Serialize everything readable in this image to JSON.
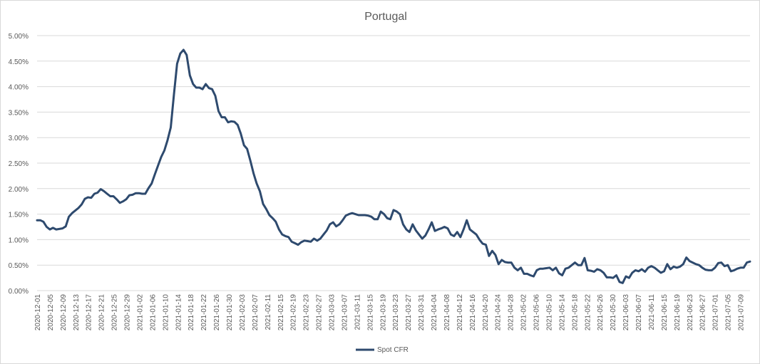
{
  "chart_data": {
    "type": "line",
    "title": "Portugal",
    "xlabel": "",
    "ylabel": "",
    "ylim": [
      0,
      0.05
    ],
    "yticks": [
      "0.00%",
      "0.50%",
      "1.00%",
      "1.50%",
      "2.00%",
      "2.50%",
      "3.00%",
      "3.50%",
      "4.00%",
      "4.50%",
      "5.00%"
    ],
    "xtick_labels": [
      "2020-12-01",
      "2020-12-05",
      "2020-12-09",
      "2020-12-13",
      "2020-12-17",
      "2020-12-21",
      "2020-12-25",
      "2020-12-29",
      "2021-01-02",
      "2021-01-06",
      "2021-01-10",
      "2021-01-14",
      "2021-01-18",
      "2021-01-22",
      "2021-01-26",
      "2021-01-30",
      "2021-02-03",
      "2021-02-07",
      "2021-02-11",
      "2021-02-15",
      "2021-02-19",
      "2021-02-23",
      "2021-02-27",
      "2021-03-03",
      "2021-03-07",
      "2021-03-11",
      "2021-03-15",
      "2021-03-19",
      "2021-03-23",
      "2021-03-27",
      "2021-03-31",
      "2021-04-04",
      "2021-04-08",
      "2021-04-12",
      "2021-04-16",
      "2021-04-20",
      "2021-04-24",
      "2021-04-28",
      "2021-05-02",
      "2021-05-06",
      "2021-05-10",
      "2021-05-14",
      "2021-05-18",
      "2021-05-22",
      "2021-05-26",
      "2021-05-30",
      "2021-06-03",
      "2021-06-07",
      "2021-06-11",
      "2021-06-15",
      "2021-06-19",
      "2021-06-23",
      "2021-06-27",
      "2021-07-01",
      "2021-07-05",
      "2021-07-09"
    ],
    "x_start": "2020-12-01",
    "x_end": "2021-07-12",
    "grid": true,
    "legend_position": "bottom",
    "line_color": "#2e4a6e",
    "series": [
      {
        "name": "Spot CFR",
        "values": [
          0.0138,
          0.0138,
          0.0135,
          0.0125,
          0.012,
          0.0123,
          0.012,
          0.0121,
          0.0122,
          0.0126,
          0.0145,
          0.0152,
          0.0157,
          0.0162,
          0.0169,
          0.018,
          0.0183,
          0.0182,
          0.019,
          0.0192,
          0.0199,
          0.0195,
          0.019,
          0.0185,
          0.0185,
          0.0179,
          0.0172,
          0.0175,
          0.0179,
          0.0187,
          0.0188,
          0.0191,
          0.0191,
          0.019,
          0.019,
          0.0201,
          0.021,
          0.0228,
          0.0245,
          0.0262,
          0.0275,
          0.0295,
          0.032,
          0.0385,
          0.0445,
          0.0465,
          0.0472,
          0.0462,
          0.0422,
          0.0405,
          0.0398,
          0.0398,
          0.0395,
          0.0405,
          0.0397,
          0.0395,
          0.0382,
          0.0352,
          0.034,
          0.034,
          0.033,
          0.0332,
          0.0331,
          0.0325,
          0.0308,
          0.0285,
          0.0278,
          0.0255,
          0.023,
          0.021,
          0.0195,
          0.017,
          0.016,
          0.0148,
          0.0142,
          0.0135,
          0.012,
          0.011,
          0.0107,
          0.0105,
          0.0096,
          0.0093,
          0.009,
          0.0095,
          0.0098,
          0.0097,
          0.0096,
          0.0102,
          0.0098,
          0.0102,
          0.011,
          0.0118,
          0.013,
          0.0134,
          0.0126,
          0.013,
          0.0138,
          0.0147,
          0.015,
          0.0152,
          0.015,
          0.0148,
          0.0148,
          0.0148,
          0.0147,
          0.0145,
          0.014,
          0.014,
          0.0155,
          0.015,
          0.0142,
          0.014,
          0.0158,
          0.0155,
          0.015,
          0.013,
          0.012,
          0.0115,
          0.013,
          0.0118,
          0.011,
          0.0102,
          0.0108,
          0.012,
          0.0134,
          0.0117,
          0.012,
          0.0122,
          0.0125,
          0.0122,
          0.011,
          0.0107,
          0.0115,
          0.0105,
          0.012,
          0.0138,
          0.012,
          0.0115,
          0.011,
          0.01,
          0.0092,
          0.009,
          0.0068,
          0.0078,
          0.007,
          0.0052,
          0.006,
          0.0056,
          0.0055,
          0.0055,
          0.0045,
          0.004,
          0.0045,
          0.0033,
          0.0033,
          0.003,
          0.0028,
          0.004,
          0.0043,
          0.0043,
          0.0044,
          0.0045,
          0.004,
          0.0045,
          0.0034,
          0.003,
          0.0043,
          0.0045,
          0.005,
          0.0055,
          0.005,
          0.005,
          0.0064,
          0.004,
          0.0039,
          0.0037,
          0.0042,
          0.004,
          0.0035,
          0.0026,
          0.0026,
          0.0025,
          0.003,
          0.0017,
          0.0015,
          0.0028,
          0.0025,
          0.0035,
          0.004,
          0.0038,
          0.0042,
          0.0037,
          0.0045,
          0.0048,
          0.0045,
          0.004,
          0.0035,
          0.0038,
          0.0052,
          0.0042,
          0.0047,
          0.0045,
          0.0047,
          0.0052,
          0.0065,
          0.0058,
          0.0055,
          0.0052,
          0.005,
          0.0045,
          0.0041,
          0.004,
          0.004,
          0.0045,
          0.0054,
          0.0055,
          0.0048,
          0.005,
          0.0038,
          0.004,
          0.0043,
          0.0045,
          0.0045,
          0.0055,
          0.0057
        ]
      }
    ]
  }
}
